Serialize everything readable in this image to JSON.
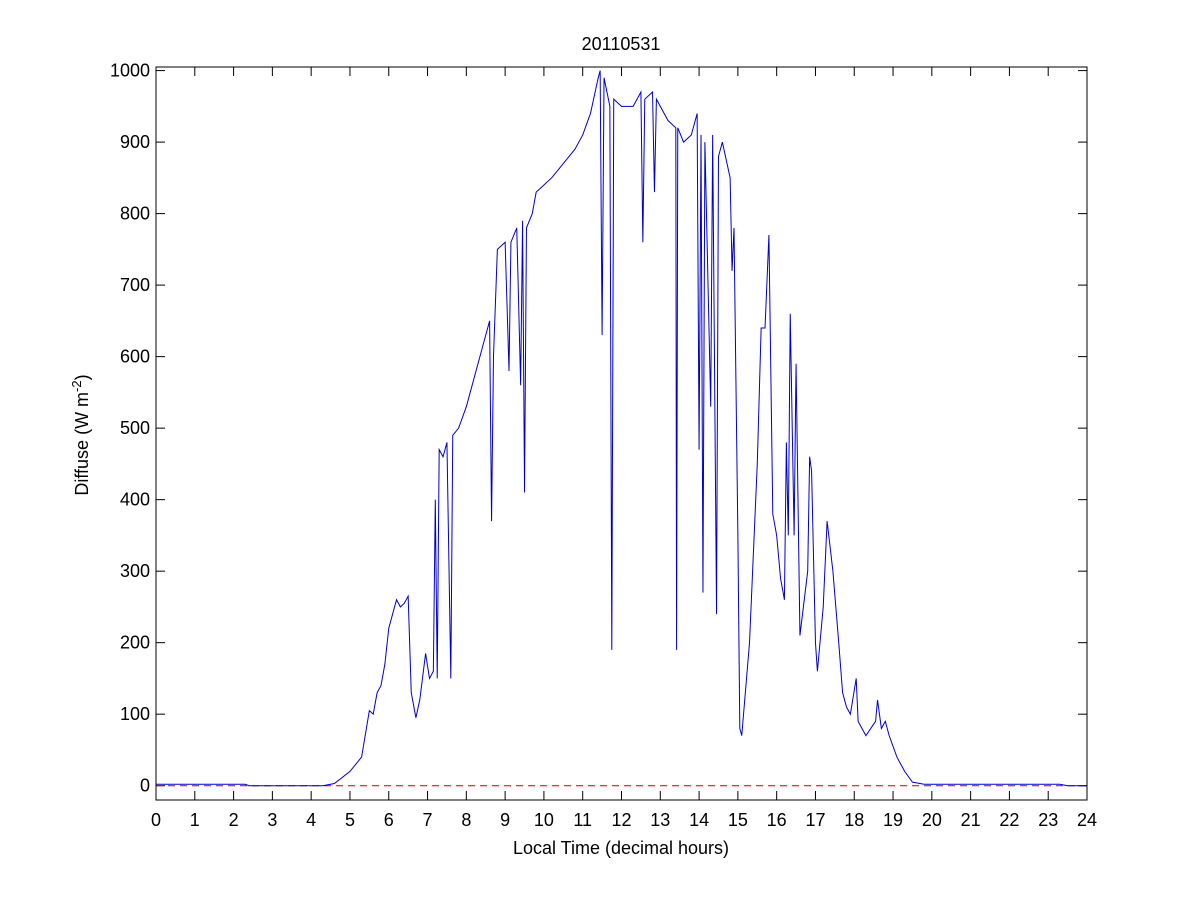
{
  "chart_data": {
    "type": "line",
    "title": "20110531",
    "x_label": "Local Time (decimal hours)",
    "y_label": {
      "text": "Diffuse (W m",
      "sup": "-2",
      "after": ")"
    },
    "xlim": [
      0,
      24
    ],
    "xticks": [
      0,
      1,
      2,
      3,
      4,
      5,
      6,
      7,
      8,
      9,
      10,
      11,
      12,
      13,
      14,
      15,
      16,
      17,
      18,
      19,
      20,
      21,
      22,
      23,
      24
    ],
    "ylim": [
      -20,
      1005
    ],
    "yticks": [
      0,
      100,
      200,
      300,
      400,
      500,
      600,
      700,
      800,
      900,
      1000
    ],
    "grid": false,
    "reference_line": {
      "value": 0,
      "color": "#cc0000",
      "style": "dashed"
    },
    "series": [
      {
        "color": "#0000cc",
        "x": [
          0,
          2.3,
          2.4,
          4.3,
          4.6,
          5.0,
          5.3,
          5.5,
          5.6,
          5.7,
          5.8,
          5.9,
          6.0,
          6.2,
          6.3,
          6.4,
          6.5,
          6.58,
          6.7,
          6.8,
          6.95,
          7.05,
          7.15,
          7.2,
          7.25,
          7.3,
          7.4,
          7.5,
          7.6,
          7.65,
          7.8,
          8.0,
          8.3,
          8.6,
          8.65,
          8.7,
          8.8,
          9.0,
          9.1,
          9.15,
          9.3,
          9.4,
          9.45,
          9.5,
          9.55,
          9.7,
          9.8,
          10.0,
          10.2,
          10.5,
          10.8,
          11.0,
          11.2,
          11.4,
          11.45,
          11.5,
          11.55,
          11.7,
          11.75,
          11.8,
          12.0,
          12.3,
          12.5,
          12.55,
          12.6,
          12.8,
          12.85,
          12.9,
          13.2,
          13.4,
          13.42,
          13.45,
          13.6,
          13.8,
          13.95,
          14.0,
          14.05,
          14.1,
          14.15,
          14.3,
          14.35,
          14.45,
          14.5,
          14.6,
          14.8,
          14.85,
          14.9,
          15.0,
          15.05,
          15.1,
          15.3,
          15.5,
          15.6,
          15.7,
          15.8,
          15.9,
          16.0,
          16.1,
          16.2,
          16.25,
          16.3,
          16.35,
          16.45,
          16.5,
          16.6,
          16.8,
          16.85,
          16.9,
          17.0,
          17.05,
          17.2,
          17.3,
          17.45,
          17.6,
          17.7,
          17.8,
          17.9,
          18.05,
          18.1,
          18.3,
          18.55,
          18.6,
          18.7,
          18.8,
          18.9,
          19.1,
          19.3,
          19.5,
          19.8,
          23.3,
          23.5,
          24
        ],
        "values": [
          2,
          2,
          0,
          0,
          3,
          20,
          40,
          105,
          100,
          130,
          140,
          170,
          220,
          260,
          250,
          255,
          265,
          130,
          95,
          120,
          185,
          150,
          160,
          400,
          150,
          470,
          460,
          480,
          150,
          490,
          500,
          530,
          590,
          650,
          370,
          600,
          750,
          760,
          580,
          760,
          780,
          560,
          790,
          410,
          780,
          800,
          830,
          840,
          850,
          870,
          890,
          910,
          940,
          990,
          1000,
          630,
          990,
          950,
          190,
          960,
          950,
          950,
          970,
          760,
          960,
          970,
          830,
          960,
          930,
          920,
          190,
          920,
          900,
          910,
          940,
          470,
          910,
          270,
          900,
          530,
          910,
          240,
          880,
          900,
          850,
          720,
          780,
          350,
          80,
          70,
          200,
          450,
          640,
          640,
          770,
          380,
          350,
          290,
          260,
          480,
          350,
          660,
          350,
          590,
          210,
          300,
          460,
          440,
          200,
          160,
          250,
          370,
          300,
          200,
          130,
          110,
          100,
          150,
          90,
          70,
          90,
          120,
          80,
          90,
          70,
          40,
          20,
          5,
          2,
          2,
          0,
          0
        ]
      }
    ]
  }
}
